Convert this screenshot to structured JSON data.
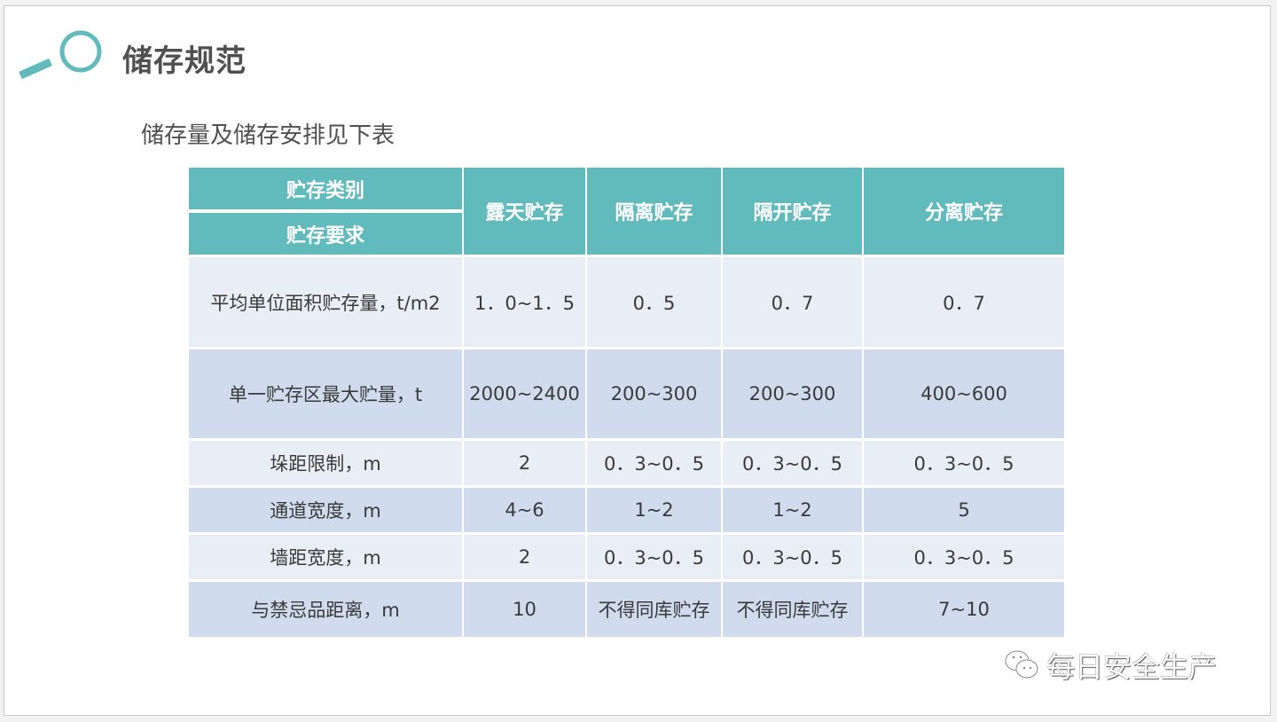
{
  "title": "储存规范",
  "subtitle": "储存量及储存安排见下表",
  "accent_color": "#61bbbd",
  "table": {
    "header_top": "贮存类别",
    "header_bottom": "贮存要求",
    "columns": [
      "露天贮存",
      "隔离贮存",
      "隔开贮存",
      "分离贮存"
    ],
    "rows": [
      {
        "label": "平均单位面积贮存量，t/m2",
        "values": [
          "1．0~1．5",
          "0．5",
          "0．7",
          "0．7"
        ]
      },
      {
        "label": "单一贮存区最大贮量，t",
        "values": [
          "2000~2400",
          "200~300",
          "200~300",
          "400~600"
        ]
      },
      {
        "label": "垛距限制，m",
        "values": [
          "2",
          "0．3~0．5",
          "0．3~0．5",
          "0．3~0．5"
        ]
      },
      {
        "label": "通道宽度，m",
        "values": [
          "4~6",
          "1~2",
          "1~2",
          "5"
        ]
      },
      {
        "label": "墙距宽度，m",
        "values": [
          "2",
          "0．3~0．5",
          "0．3~0．5",
          "0．3~0．5"
        ]
      },
      {
        "label": "与禁忌品距离，m",
        "values": [
          "10",
          "不得同库贮存",
          "不得同库贮存",
          "7~10"
        ]
      }
    ]
  },
  "watermark": {
    "icon": "wechat-icon",
    "text": "每日安全生产"
  }
}
